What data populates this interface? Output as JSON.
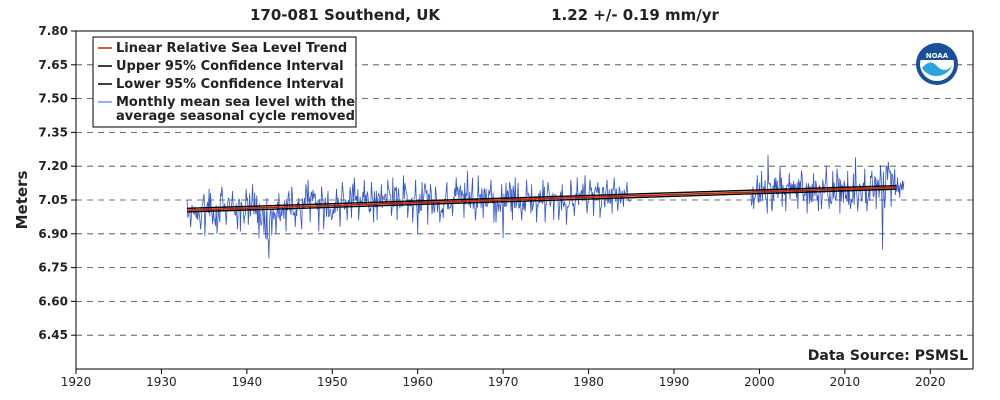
{
  "chart_data": {
    "type": "line",
    "title_station": "170-081 Southend, UK",
    "title_trend": "1.22 +/-  0.19 mm/yr",
    "ylabel": "Meters",
    "xlabel": "",
    "xlim": [
      1920,
      2025
    ],
    "ylim": [
      6.3,
      7.8
    ],
    "x_ticks": [
      "1920",
      "1930",
      "1940",
      "1950",
      "1960",
      "1970",
      "1980",
      "1990",
      "2000",
      "2010",
      "2020"
    ],
    "y_ticks": [
      "7.80",
      "7.65",
      "7.50",
      "7.35",
      "7.20",
      "7.05",
      "6.90",
      "6.75",
      "6.60",
      "6.45"
    ],
    "grid": "horizontal dashed",
    "legend_position": "top-left",
    "legend": [
      {
        "label": "Linear Relative Sea Level Trend",
        "color": "#cc2200"
      },
      {
        "label": "Upper 95% Confidence Interval",
        "color": "#000000"
      },
      {
        "label": "Lower 95% Confidence Interval",
        "color": "#000000"
      },
      {
        "label": "Monthly mean sea level with the",
        "label2": "average seasonal cycle removed",
        "color": "#7799ee"
      }
    ],
    "source_note": "Data Source: PSMSL",
    "logo_text": "NOAA",
    "series": [
      {
        "kind": "trend",
        "color": "#cc2200",
        "x": [
          1933.0,
          2016.0
        ],
        "y": [
          7.005,
          7.106
        ]
      },
      {
        "kind": "upper_ci",
        "color": "#000000",
        "x": [
          1933.0,
          2016.0
        ],
        "y": [
          7.013,
          7.114
        ]
      },
      {
        "kind": "lower_ci",
        "color": "#000000",
        "x": [
          1933.0,
          2016.0
        ],
        "y": [
          6.997,
          7.098
        ]
      },
      {
        "kind": "monthly",
        "color": "#3355cc",
        "x": [
          1933.0,
          1934.0,
          1935.0,
          1936.0,
          1937.0,
          1938.0,
          1939.0,
          1940.0,
          1941.0,
          1942.0,
          1943.0,
          1944.0,
          1945.0,
          1946.0,
          1947.0,
          1948.0,
          1949.0,
          1950.0,
          1951.0,
          1952.0,
          1953.0,
          1954.0,
          1955.0,
          1956.0,
          1957.0,
          1958.0,
          1959.0,
          1960.0,
          1961.0,
          1962.0,
          1963.0,
          1964.0,
          1965.0,
          1966.0,
          1967.0,
          1968.0,
          1969.0,
          1970.0,
          1971.0,
          1972.0,
          1973.0,
          1974.0,
          1975.0,
          1976.0,
          1977.0,
          1978.0,
          1979.0,
          1980.0,
          1981.0,
          1982.0,
          1983.0,
          1984.0,
          1999.0,
          2000.0,
          2001.0,
          2002.0,
          2003.0,
          2004.0,
          2005.0,
          2006.0,
          2007.0,
          2008.0,
          2009.0,
          2010.0,
          2011.0,
          2012.0,
          2013.0,
          2014.0,
          2015.0,
          2016.0
        ],
        "y": [
          7.0,
          6.99,
          7.02,
          6.98,
          7.04,
          7.01,
          7.0,
          7.03,
          6.99,
          6.95,
          7.01,
          7.02,
          7.03,
          7.01,
          7.04,
          7.02,
          7.01,
          7.02,
          7.05,
          7.08,
          7.06,
          7.04,
          7.05,
          7.07,
          7.06,
          7.07,
          7.05,
          7.06,
          7.04,
          7.03,
          7.05,
          7.07,
          7.08,
          7.06,
          7.07,
          7.05,
          7.04,
          7.06,
          7.07,
          7.05,
          7.04,
          7.06,
          7.05,
          7.04,
          7.06,
          7.07,
          7.08,
          7.07,
          7.06,
          7.07,
          7.08,
          7.07,
          7.07,
          7.09,
          7.08,
          7.11,
          7.09,
          7.1,
          7.08,
          7.09,
          7.11,
          7.08,
          7.09,
          7.07,
          7.1,
          7.09,
          7.11,
          7.12,
          7.13,
          7.11
        ],
        "min": [
          6.93,
          6.92,
          6.89,
          6.9,
          6.94,
          6.92,
          6.91,
          6.94,
          6.88,
          6.79,
          6.9,
          6.91,
          6.93,
          6.92,
          6.95,
          6.91,
          6.92,
          6.93,
          6.96,
          6.97,
          6.96,
          6.95,
          6.96,
          6.98,
          6.96,
          6.97,
          6.95,
          6.9,
          6.94,
          6.95,
          6.97,
          6.98,
          6.97,
          6.96,
          6.97,
          6.95,
          6.95,
          6.88,
          6.96,
          6.96,
          6.95,
          6.95,
          6.96,
          6.96,
          6.94,
          6.98,
          6.99,
          6.98,
          6.97,
          6.99,
          7.0,
          7.02,
          7.01,
          6.99,
          7.0,
          7.02,
          7.0,
          7.01,
          6.99,
          7.0,
          7.01,
          7.01,
          6.99,
          7.01,
          7.0,
          7.0,
          7.01,
          6.83,
          7.02,
          7.06
        ],
        "max": [
          7.05,
          7.06,
          7.1,
          7.08,
          7.11,
          7.09,
          7.1,
          7.12,
          7.07,
          7.06,
          7.08,
          7.09,
          7.11,
          7.12,
          7.14,
          7.11,
          7.09,
          7.1,
          7.13,
          7.15,
          7.14,
          7.13,
          7.12,
          7.14,
          7.15,
          7.16,
          7.14,
          7.13,
          7.12,
          7.11,
          7.13,
          7.15,
          7.18,
          7.15,
          7.16,
          7.14,
          7.12,
          7.13,
          7.15,
          7.14,
          7.12,
          7.14,
          7.13,
          7.12,
          7.14,
          7.15,
          7.16,
          7.14,
          7.13,
          7.14,
          7.15,
          7.13,
          7.16,
          7.18,
          7.25,
          7.2,
          7.17,
          7.18,
          7.16,
          7.17,
          7.2,
          7.18,
          7.19,
          7.18,
          7.24,
          7.19,
          7.18,
          7.2,
          7.22,
          7.15
        ]
      }
    ]
  }
}
